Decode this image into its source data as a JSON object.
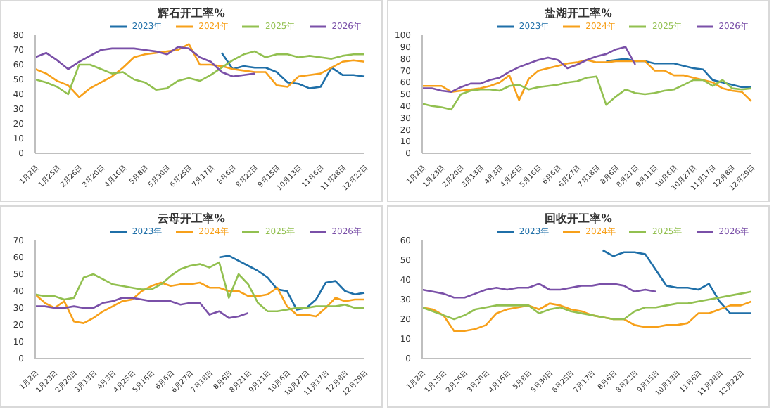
{
  "chart_data": [
    {
      "type": "line",
      "title": "辉石开工率%",
      "categories": [
        "1月2日",
        null,
        "1月25日",
        null,
        "2月26日",
        null,
        "3月20日",
        null,
        "4月16日",
        null,
        "5月8日",
        null,
        "5月30日",
        null,
        "6月25日",
        null,
        "7月17日",
        null,
        "8月6日",
        null,
        "8月22日",
        null,
        "9月15日",
        null,
        "10月13日",
        null,
        "11月6日",
        null,
        "11月28日",
        null,
        "12月22日"
      ],
      "ylim": [
        0,
        80
      ],
      "yticks": [
        0,
        10,
        20,
        30,
        40,
        50,
        60,
        70,
        80
      ],
      "legend": "top",
      "grid": false,
      "marker": "none",
      "series": [
        {
          "name": "2023年",
          "color": "#1f6fa8",
          "values": [
            null,
            null,
            null,
            null,
            null,
            null,
            null,
            null,
            null,
            null,
            null,
            null,
            null,
            null,
            null,
            null,
            null,
            68,
            57,
            59,
            58,
            58,
            55,
            48,
            47,
            44,
            45,
            58,
            53,
            53,
            52
          ]
        },
        {
          "name": "2024年",
          "color": "#f7a01a",
          "values": [
            57,
            54,
            49,
            46,
            38,
            44,
            48,
            52,
            58,
            65,
            67,
            68,
            69,
            70,
            74,
            60,
            60,
            59,
            57,
            56,
            55,
            55,
            46,
            45,
            52,
            53,
            54,
            58,
            62,
            63,
            62
          ]
        },
        {
          "name": "2025年",
          "color": "#92c050",
          "values": [
            50,
            48,
            45,
            40,
            60,
            60,
            57,
            54,
            55,
            50,
            48,
            43,
            44,
            49,
            51,
            49,
            53,
            58,
            63,
            67,
            69,
            65,
            67,
            67,
            65,
            66,
            65,
            64,
            66,
            67,
            67
          ]
        },
        {
          "name": "2026年",
          "color": "#7a50a8",
          "values": [
            65,
            68,
            63,
            57,
            62,
            66,
            70,
            71,
            71,
            71,
            70,
            69,
            67,
            72,
            71,
            65,
            62,
            55,
            52,
            53,
            54,
            null,
            null,
            null,
            null,
            null,
            null,
            null,
            null,
            null,
            null
          ]
        }
      ]
    },
    {
      "type": "line",
      "title": "盐湖开工率%",
      "categories": [
        "1月2日",
        null,
        "1月23日",
        null,
        "2月20日",
        null,
        "3月13日",
        null,
        "4月3日",
        null,
        "4月25日",
        null,
        "5月16日",
        null,
        "6月6日",
        null,
        "6月27日",
        null,
        "7月18日",
        null,
        "8月6日",
        null,
        "8月21日",
        null,
        "9月11日",
        null,
        "10月6日",
        null,
        "10月27日",
        null,
        "11月17日",
        null,
        "12月8日",
        null,
        "12月29日"
      ],
      "ylim": [
        0,
        100
      ],
      "yticks": [
        0,
        10,
        20,
        30,
        40,
        50,
        60,
        70,
        80,
        90,
        100
      ],
      "legend": "top",
      "grid": false,
      "marker": "none",
      "series": [
        {
          "name": "2023年",
          "color": "#1f6fa8",
          "values": [
            null,
            null,
            null,
            null,
            null,
            null,
            null,
            null,
            null,
            null,
            null,
            null,
            null,
            null,
            null,
            null,
            null,
            null,
            null,
            78,
            79,
            80,
            78,
            78,
            76,
            76,
            76,
            74,
            72,
            71,
            62,
            60,
            58,
            56,
            56
          ]
        },
        {
          "name": "2024年",
          "color": "#f7a01a",
          "values": [
            57,
            57,
            57,
            52,
            53,
            54,
            55,
            57,
            60,
            66,
            45,
            63,
            70,
            72,
            74,
            76,
            77,
            79,
            77,
            77,
            78,
            78,
            78,
            78,
            70,
            70,
            66,
            66,
            64,
            62,
            60,
            55,
            53,
            52,
            44
          ]
        },
        {
          "name": "2025年",
          "color": "#92c050",
          "values": [
            42,
            40,
            39,
            37,
            50,
            53,
            54,
            54,
            53,
            57,
            58,
            54,
            56,
            57,
            58,
            60,
            61,
            64,
            65,
            41,
            48,
            54,
            51,
            50,
            51,
            53,
            54,
            58,
            62,
            62,
            57,
            62,
            55,
            54,
            55
          ]
        },
        {
          "name": "2026年",
          "color": "#7a50a8",
          "values": [
            55,
            55,
            53,
            52,
            56,
            59,
            59,
            62,
            64,
            69,
            73,
            76,
            79,
            81,
            79,
            72,
            75,
            79,
            82,
            84,
            88,
            90,
            75,
            null,
            null,
            null,
            null,
            null,
            null,
            null,
            null,
            null,
            null,
            null,
            null
          ]
        }
      ]
    },
    {
      "type": "line",
      "title": "云母开工率%",
      "categories": [
        "1月2日",
        null,
        "1月23日",
        null,
        "2月20日",
        null,
        "3月13日",
        null,
        "4月3日",
        null,
        "4月25日",
        null,
        "5月16日",
        null,
        "6月6日",
        null,
        "6月27日",
        null,
        "7月18日",
        null,
        "8月6日",
        null,
        "8月21日",
        null,
        "9月11日",
        null,
        "10月6日",
        null,
        "10月27日",
        null,
        "11月17日",
        null,
        "12月8日",
        null,
        "12月29日"
      ],
      "ylim": [
        0,
        70
      ],
      "yticks": [
        0,
        10,
        20,
        30,
        40,
        50,
        60,
        70
      ],
      "legend": "top",
      "grid": false,
      "marker": "none",
      "series": [
        {
          "name": "2023年",
          "color": "#1f6fa8",
          "values": [
            null,
            null,
            null,
            null,
            null,
            null,
            null,
            null,
            null,
            null,
            null,
            null,
            null,
            null,
            null,
            null,
            null,
            null,
            null,
            60,
            61,
            58,
            55,
            52,
            48,
            41,
            40,
            29,
            30,
            35,
            45,
            46,
            40,
            38,
            39
          ]
        },
        {
          "name": "2024年",
          "color": "#f7a01a",
          "values": [
            38,
            33,
            30,
            34,
            22,
            21,
            24,
            28,
            31,
            34,
            35,
            40,
            43,
            45,
            43,
            44,
            44,
            45,
            42,
            42,
            40,
            40,
            37,
            37,
            38,
            42,
            31,
            26,
            26,
            25,
            30,
            36,
            34,
            35,
            35
          ]
        },
        {
          "name": "2025年",
          "color": "#92c050",
          "values": [
            38,
            37,
            37,
            35,
            36,
            48,
            50,
            47,
            44,
            43,
            42,
            41,
            41,
            44,
            49,
            53,
            55,
            56,
            54,
            57,
            36,
            50,
            44,
            33,
            28,
            28,
            29,
            30,
            30,
            31,
            31,
            31,
            32,
            30,
            30
          ]
        },
        {
          "name": "2026年",
          "color": "#7a50a8",
          "values": [
            31,
            31,
            30,
            30,
            31,
            30,
            30,
            33,
            34,
            36,
            36,
            35,
            34,
            34,
            34,
            32,
            33,
            33,
            26,
            28,
            24,
            25,
            27,
            null,
            null,
            null,
            null,
            null,
            null,
            null,
            null,
            null,
            null,
            null,
            null
          ]
        }
      ]
    },
    {
      "type": "line",
      "title": "回收开工率%",
      "categories": [
        "1月2日",
        null,
        "1月25日",
        null,
        "2月26日",
        null,
        "3月20日",
        null,
        "4月16日",
        null,
        "5月8日",
        null,
        "5月30日",
        null,
        "6月25日",
        null,
        "7月17日",
        null,
        "8月6日",
        null,
        "8月22日",
        null,
        "9月15日",
        null,
        "10月13日",
        null,
        "11月6日",
        null,
        "11月28日",
        null,
        "12月22日",
        null
      ],
      "ylim": [
        0,
        60
      ],
      "yticks": [
        0,
        10,
        20,
        30,
        40,
        50,
        60
      ],
      "legend": "top",
      "grid": false,
      "marker": "none",
      "series": [
        {
          "name": "2023年",
          "color": "#1f6fa8",
          "values": [
            null,
            null,
            null,
            null,
            null,
            null,
            null,
            null,
            null,
            null,
            null,
            null,
            null,
            null,
            null,
            null,
            null,
            55,
            52,
            54,
            54,
            53,
            45,
            37,
            36,
            36,
            35,
            38,
            29,
            23,
            23,
            23
          ]
        },
        {
          "name": "2024年",
          "color": "#f7a01a",
          "values": [
            26,
            25,
            22,
            14,
            14,
            15,
            17,
            23,
            25,
            26,
            27,
            25,
            28,
            27,
            25,
            24,
            22,
            21,
            20,
            20,
            17,
            16,
            16,
            17,
            17,
            18,
            23,
            23,
            25,
            27,
            27,
            29
          ]
        },
        {
          "name": "2025年",
          "color": "#92c050",
          "values": [
            26,
            24,
            22,
            20,
            22,
            25,
            26,
            27,
            27,
            27,
            27,
            23,
            25,
            26,
            24,
            23,
            22,
            21,
            20,
            20,
            24,
            26,
            26,
            27,
            28,
            28,
            29,
            30,
            31,
            32,
            33,
            34
          ]
        },
        {
          "name": "2026年",
          "color": "#7a50a8",
          "values": [
            35,
            34,
            33,
            31,
            31,
            33,
            35,
            36,
            35,
            36,
            36,
            38,
            35,
            35,
            36,
            37,
            37,
            38,
            38,
            37,
            34,
            35,
            34,
            null,
            null,
            null,
            null,
            null,
            null,
            null,
            null,
            null
          ]
        }
      ]
    }
  ]
}
